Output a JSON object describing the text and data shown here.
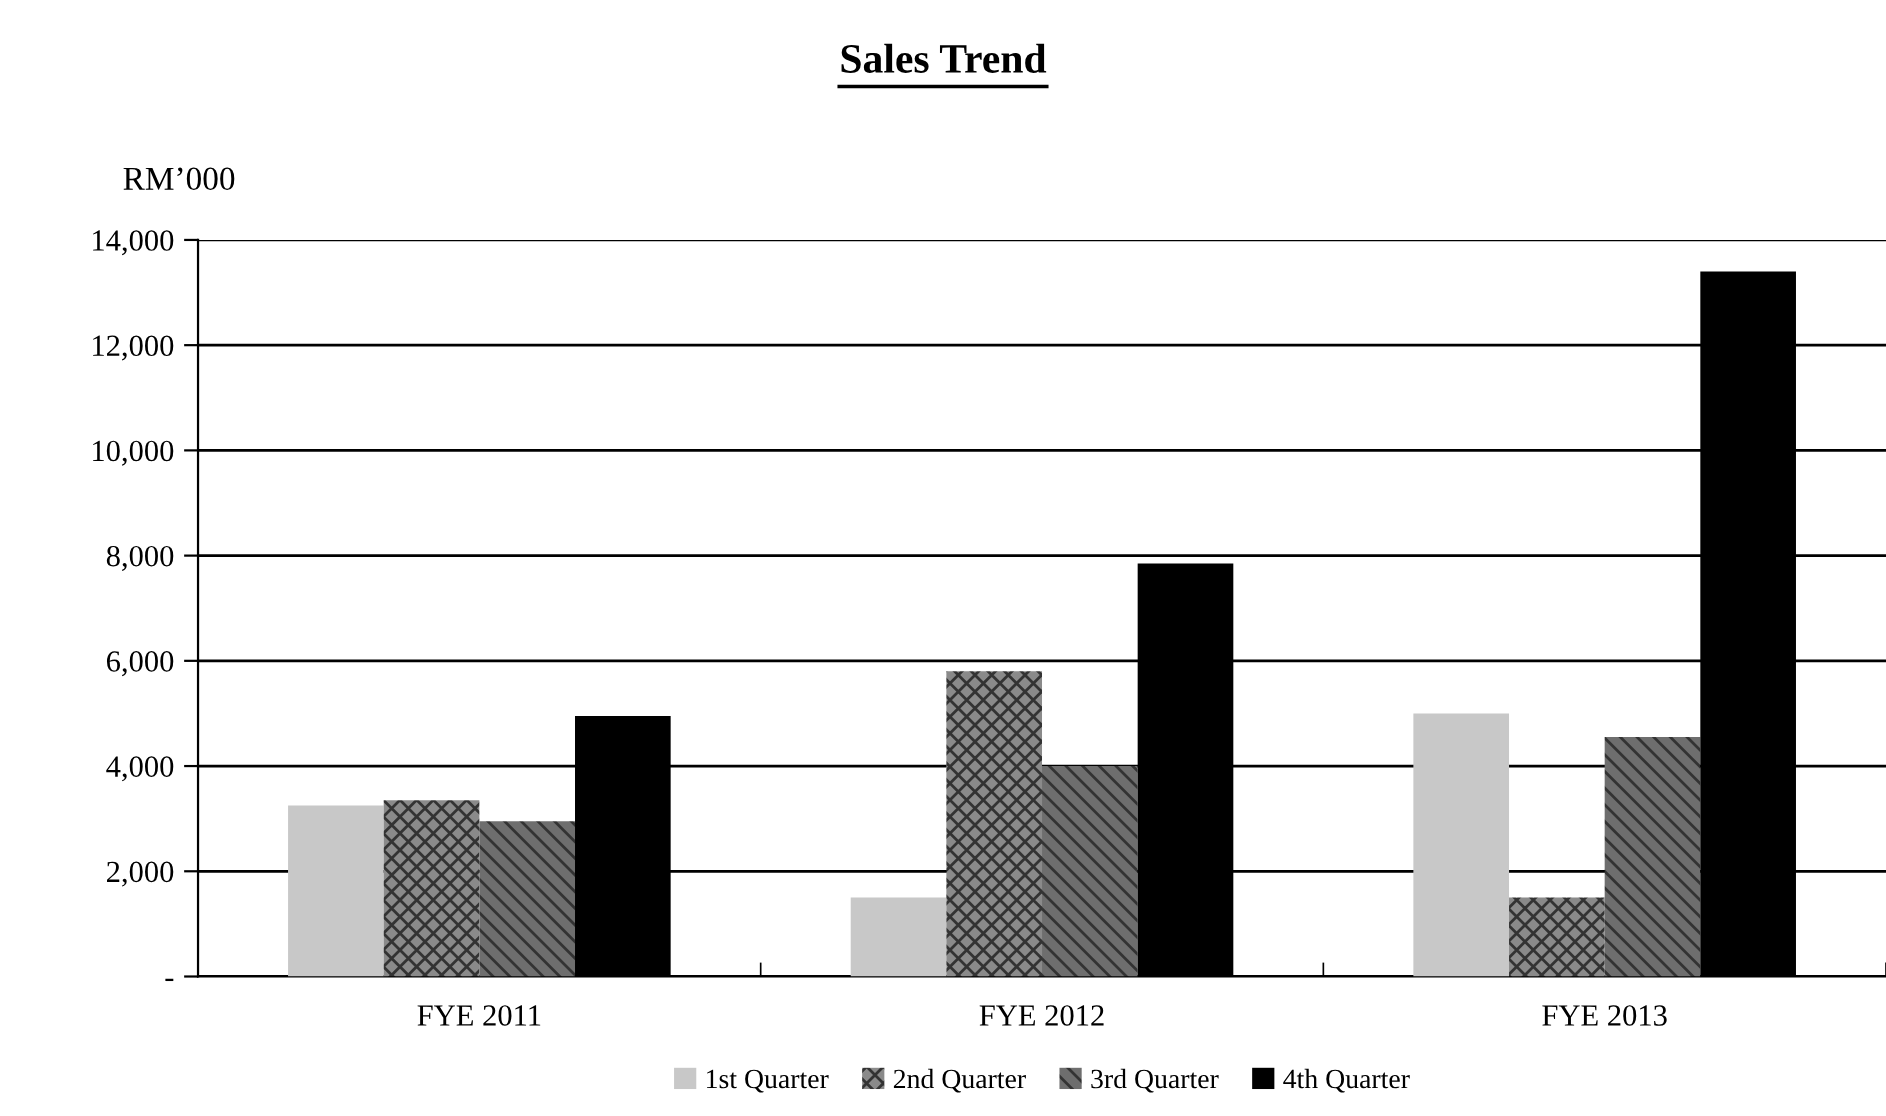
{
  "chart_data": {
    "type": "bar",
    "title": "Sales Trend",
    "ylabel": "RM’000",
    "categories": [
      "FYE 2011",
      "FYE 2012",
      "FYE 2013"
    ],
    "series": [
      {
        "name": "1st Quarter",
        "color": "#c8c8c8",
        "values": [
          3250,
          1500,
          5000
        ]
      },
      {
        "name": "2nd Quarter",
        "color": "#8a8a8a",
        "values": [
          3350,
          5800,
          1500
        ]
      },
      {
        "name": "3rd Quarter",
        "color": "#6e6e6e",
        "values": [
          2950,
          4000,
          4550
        ]
      },
      {
        "name": "4th Quarter",
        "color": "#000000",
        "values": [
          4950,
          7850,
          13400
        ]
      }
    ],
    "ylim": [
      0,
      14000
    ],
    "yticks": [
      {
        "value": 0,
        "label": "-"
      },
      {
        "value": 2000,
        "label": "2,000"
      },
      {
        "value": 4000,
        "label": "4,000"
      },
      {
        "value": 6000,
        "label": "6,000"
      },
      {
        "value": 8000,
        "label": "8,000"
      },
      {
        "value": 10000,
        "label": "10,000"
      },
      {
        "value": 12000,
        "label": "12,000"
      },
      {
        "value": 14000,
        "label": "14,000"
      }
    ],
    "grid": "y",
    "legend": "bottom"
  }
}
